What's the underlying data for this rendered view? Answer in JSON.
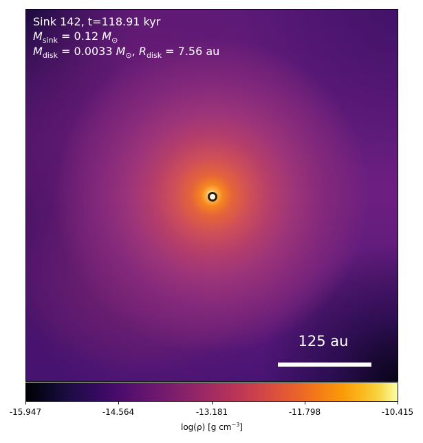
{
  "panel": {
    "title_prefix": "Sink 142, t=118.91 kyr",
    "sink_mass_symbol": "M",
    "sink_mass_sub": "sink",
    "sink_mass_value": " = 0.12 ",
    "sink_mass_unit": "M",
    "sink_mass_unit_sub": "⊙",
    "disk_mass_symbol": "M",
    "disk_mass_sub": "disk",
    "disk_mass_value": " = 0.0033 ",
    "disk_mass_unit": "M",
    "disk_mass_unit_sub": "⊙",
    "separator": ", ",
    "disk_radius_symbol": "R",
    "disk_radius_sub": "disk",
    "disk_radius_value": " = 7.56 au"
  },
  "scale_bar": {
    "label": "125 au"
  },
  "colorbar": {
    "colormap": "inferno",
    "ticks": [
      "-15.947",
      "-14.564",
      "-13.181",
      "-11.798",
      "-10.415"
    ],
    "label_prefix": "log(ρ) [g cm",
    "label_exponent": "−3",
    "label_suffix": "]"
  },
  "colors": {
    "sink_marker_fill": "#fffbe6",
    "sink_marker_edge": "#2b1d0a",
    "annotation_text": "#ffffff"
  }
}
